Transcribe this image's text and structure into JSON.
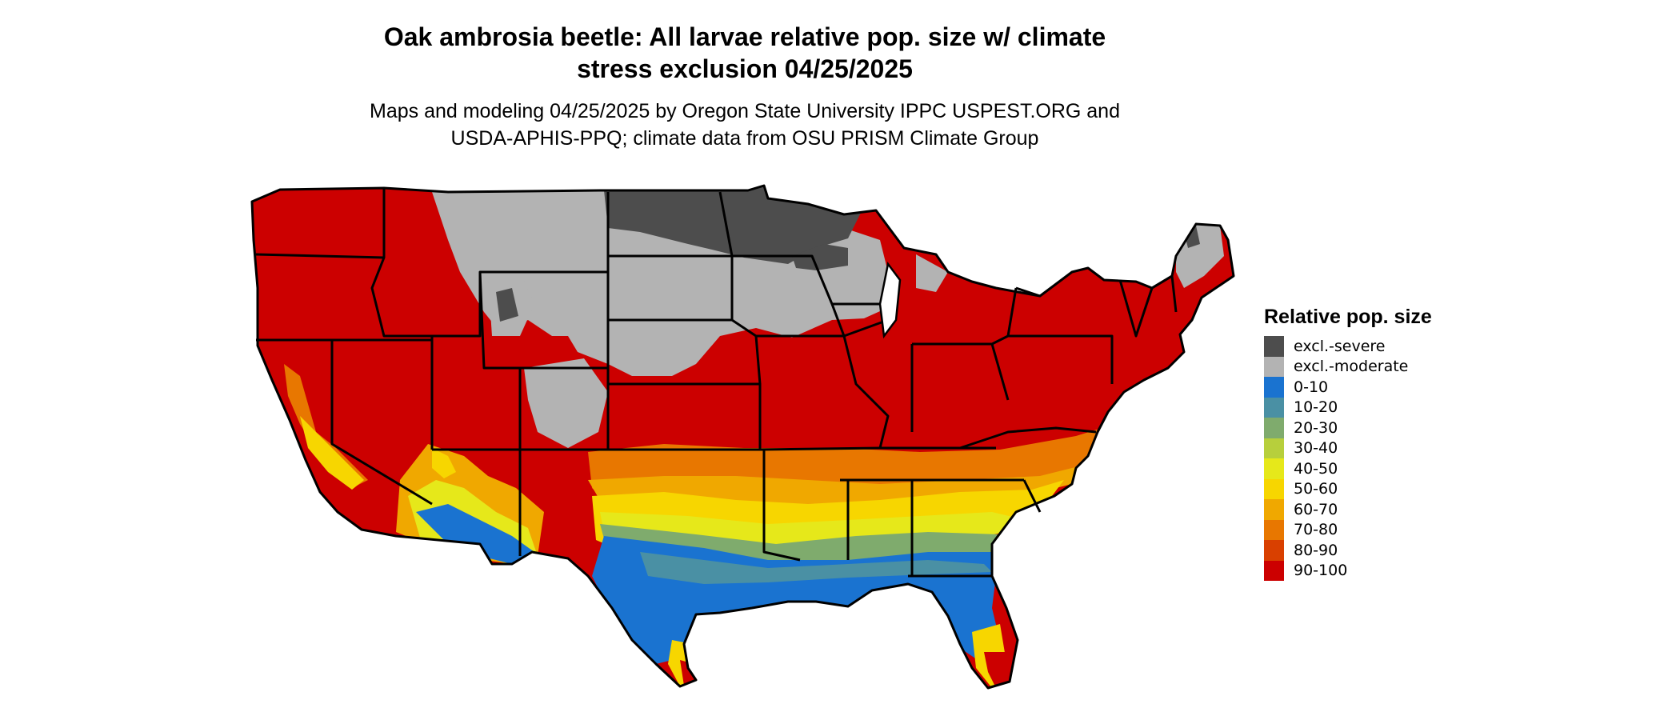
{
  "title": {
    "line1": "Oak ambrosia beetle: All larvae relative pop. size w/ climate",
    "line2": "stress exclusion 04/25/2025"
  },
  "subtitle": {
    "line1": "Maps and modeling 04/25/2025 by Oregon State University IPPC USPEST.ORG and",
    "line2": "USDA-APHIS-PPQ; climate data from OSU PRISM Climate Group"
  },
  "legend": {
    "title": "Relative pop. size",
    "items": [
      {
        "label": "excl.-severe",
        "color": "#4d4d4d"
      },
      {
        "label": "excl.-moderate",
        "color": "#b3b3b3"
      },
      {
        "label": "0-10",
        "color": "#1a73d0"
      },
      {
        "label": "10-20",
        "color": "#4a90a4"
      },
      {
        "label": "20-30",
        "color": "#7fab6d"
      },
      {
        "label": "30-40",
        "color": "#b7cf3c"
      },
      {
        "label": "40-50",
        "color": "#e6e81a"
      },
      {
        "label": "50-60",
        "color": "#f7d600"
      },
      {
        "label": "60-70",
        "color": "#f0a800"
      },
      {
        "label": "70-80",
        "color": "#e87700"
      },
      {
        "label": "80-90",
        "color": "#d94000"
      },
      {
        "label": "90-100",
        "color": "#cc0000"
      }
    ]
  }
}
